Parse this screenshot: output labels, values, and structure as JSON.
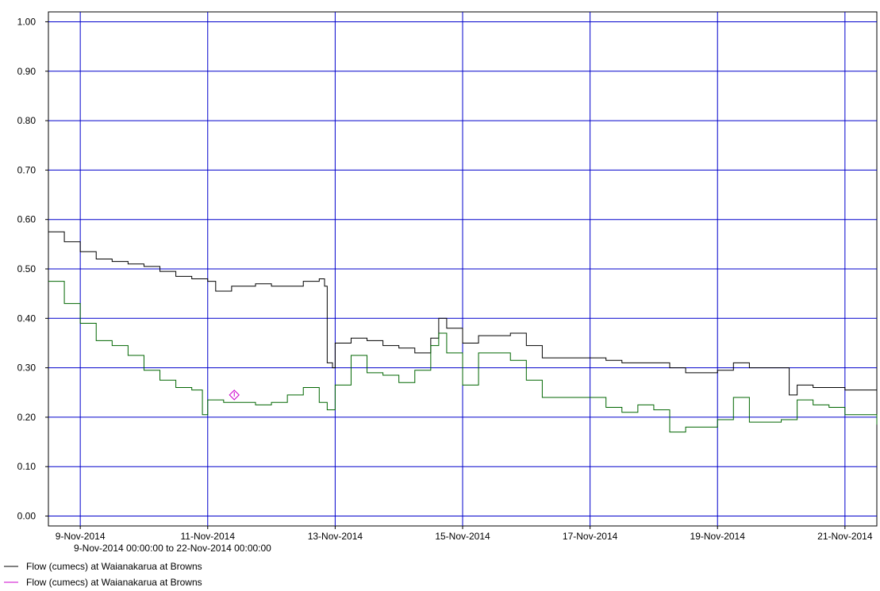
{
  "chart_data": {
    "type": "line",
    "date_range": "9-Nov-2014 00:00:00 to 22-Nov-2014 00:00:00",
    "x_ticks": [
      "9-Nov-2014",
      "11-Nov-2014",
      "13-Nov-2014",
      "15-Nov-2014",
      "17-Nov-2014",
      "19-Nov-2014",
      "21-Nov-2014"
    ],
    "y_ticks": [
      "0.00",
      "0.10",
      "0.20",
      "0.30",
      "0.40",
      "0.50",
      "0.60",
      "0.70",
      "0.80",
      "0.90",
      "1.00"
    ],
    "xlim": [
      "2014-11-09 00:00",
      "2014-11-22 00:00"
    ],
    "ylim": [
      -0.02,
      1.02
    ],
    "grid": true,
    "grid_color": "#0000cc",
    "legend_position": "bottom-left",
    "series": [
      {
        "name": "Flow (cumecs) at Waianakarua at Browns",
        "color": "#000000",
        "points": [
          [
            "2014-11-09 00:00",
            0.575
          ],
          [
            "2014-11-09 06:00",
            0.555
          ],
          [
            "2014-11-09 12:00",
            0.535
          ],
          [
            "2014-11-09 18:00",
            0.52
          ],
          [
            "2014-11-10 00:00",
            0.515
          ],
          [
            "2014-11-10 06:00",
            0.51
          ],
          [
            "2014-11-10 12:00",
            0.505
          ],
          [
            "2014-11-10 18:00",
            0.495
          ],
          [
            "2014-11-11 00:00",
            0.485
          ],
          [
            "2014-11-11 06:00",
            0.48
          ],
          [
            "2014-11-11 12:00",
            0.475
          ],
          [
            "2014-11-11 15:00",
            0.455
          ],
          [
            "2014-11-11 21:00",
            0.465
          ],
          [
            "2014-11-12 06:00",
            0.47
          ],
          [
            "2014-11-12 12:00",
            0.465
          ],
          [
            "2014-11-12 18:00",
            0.465
          ],
          [
            "2014-11-13 00:00",
            0.475
          ],
          [
            "2014-11-13 06:00",
            0.48
          ],
          [
            "2014-11-13 08:00",
            0.465
          ],
          [
            "2014-11-13 09:00",
            0.31
          ],
          [
            "2014-11-13 11:00",
            0.3
          ],
          [
            "2014-11-13 12:00",
            0.35
          ],
          [
            "2014-11-13 18:00",
            0.36
          ],
          [
            "2014-11-14 00:00",
            0.355
          ],
          [
            "2014-11-14 06:00",
            0.345
          ],
          [
            "2014-11-14 12:00",
            0.34
          ],
          [
            "2014-11-14 18:00",
            0.33
          ],
          [
            "2014-11-15 00:00",
            0.36
          ],
          [
            "2014-11-15 03:00",
            0.4
          ],
          [
            "2014-11-15 06:00",
            0.38
          ],
          [
            "2014-11-15 12:00",
            0.35
          ],
          [
            "2014-11-15 18:00",
            0.365
          ],
          [
            "2014-11-16 00:00",
            0.365
          ],
          [
            "2014-11-16 06:00",
            0.37
          ],
          [
            "2014-11-16 12:00",
            0.345
          ],
          [
            "2014-11-16 18:00",
            0.32
          ],
          [
            "2014-11-17 06:00",
            0.32
          ],
          [
            "2014-11-17 18:00",
            0.315
          ],
          [
            "2014-11-18 00:00",
            0.31
          ],
          [
            "2014-11-18 12:00",
            0.31
          ],
          [
            "2014-11-18 18:00",
            0.3
          ],
          [
            "2014-11-19 00:00",
            0.29
          ],
          [
            "2014-11-19 12:00",
            0.295
          ],
          [
            "2014-11-19 18:00",
            0.31
          ],
          [
            "2014-11-20 00:00",
            0.3
          ],
          [
            "2014-11-20 12:00",
            0.3
          ],
          [
            "2014-11-20 15:00",
            0.245
          ],
          [
            "2014-11-20 18:00",
            0.265
          ],
          [
            "2014-11-21 00:00",
            0.26
          ],
          [
            "2014-11-21 12:00",
            0.255
          ],
          [
            "2014-11-22 00:00",
            0.24
          ]
        ]
      },
      {
        "name": "Flow (cumecs) at Waianakarua at Browns",
        "color": "#cc00cc",
        "points": [
          [
            "2014-11-11 22:00",
            0.245
          ]
        ]
      },
      {
        "color": "#006600",
        "points": [
          [
            "2014-11-09 00:00",
            0.475
          ],
          [
            "2014-11-09 06:00",
            0.43
          ],
          [
            "2014-11-09 12:00",
            0.39
          ],
          [
            "2014-11-09 18:00",
            0.355
          ],
          [
            "2014-11-10 00:00",
            0.345
          ],
          [
            "2014-11-10 06:00",
            0.325
          ],
          [
            "2014-11-10 12:00",
            0.295
          ],
          [
            "2014-11-10 18:00",
            0.275
          ],
          [
            "2014-11-11 00:00",
            0.26
          ],
          [
            "2014-11-11 06:00",
            0.255
          ],
          [
            "2014-11-11 10:00",
            0.205
          ],
          [
            "2014-11-11 12:00",
            0.235
          ],
          [
            "2014-11-11 18:00",
            0.23
          ],
          [
            "2014-11-12 00:00",
            0.23
          ],
          [
            "2014-11-12 06:00",
            0.225
          ],
          [
            "2014-11-12 12:00",
            0.23
          ],
          [
            "2014-11-12 18:00",
            0.245
          ],
          [
            "2014-11-13 00:00",
            0.26
          ],
          [
            "2014-11-13 06:00",
            0.23
          ],
          [
            "2014-11-13 09:00",
            0.215
          ],
          [
            "2014-11-13 12:00",
            0.265
          ],
          [
            "2014-11-13 18:00",
            0.325
          ],
          [
            "2014-11-14 00:00",
            0.29
          ],
          [
            "2014-11-14 06:00",
            0.285
          ],
          [
            "2014-11-14 12:00",
            0.27
          ],
          [
            "2014-11-14 18:00",
            0.295
          ],
          [
            "2014-11-15 00:00",
            0.345
          ],
          [
            "2014-11-15 03:00",
            0.37
          ],
          [
            "2014-11-15 06:00",
            0.33
          ],
          [
            "2014-11-15 12:00",
            0.265
          ],
          [
            "2014-11-15 18:00",
            0.33
          ],
          [
            "2014-11-16 00:00",
            0.33
          ],
          [
            "2014-11-16 06:00",
            0.315
          ],
          [
            "2014-11-16 12:00",
            0.275
          ],
          [
            "2014-11-16 18:00",
            0.24
          ],
          [
            "2014-11-17 12:00",
            0.24
          ],
          [
            "2014-11-17 18:00",
            0.22
          ],
          [
            "2014-11-18 00:00",
            0.21
          ],
          [
            "2014-11-18 06:00",
            0.225
          ],
          [
            "2014-11-18 12:00",
            0.215
          ],
          [
            "2014-11-18 18:00",
            0.17
          ],
          [
            "2014-11-19 00:00",
            0.18
          ],
          [
            "2014-11-19 12:00",
            0.195
          ],
          [
            "2014-11-19 18:00",
            0.24
          ],
          [
            "2014-11-20 00:00",
            0.19
          ],
          [
            "2014-11-20 12:00",
            0.195
          ],
          [
            "2014-11-20 18:00",
            0.235
          ],
          [
            "2014-11-21 00:00",
            0.225
          ],
          [
            "2014-11-21 06:00",
            0.22
          ],
          [
            "2014-11-21 12:00",
            0.205
          ],
          [
            "2014-11-22 00:00",
            0.185
          ]
        ]
      }
    ]
  }
}
